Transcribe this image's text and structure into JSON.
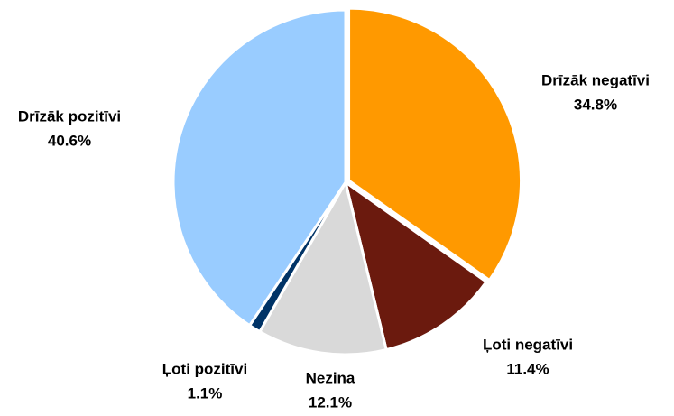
{
  "chart_data": {
    "type": "pie",
    "categories": [
      "Drīzāk negatīvi",
      "Ļoti negatīvi",
      "Nezina",
      "Ļoti pozitīvi",
      "Drīzāk pozitīvi"
    ],
    "values": [
      34.8,
      11.4,
      12.1,
      1.1,
      40.6
    ],
    "value_labels": [
      "34.8%",
      "11.4%",
      "12.1%",
      "1.1%",
      "40.6%"
    ],
    "colors": [
      "#FF9900",
      "#6B1A0E",
      "#D9D9D9",
      "#003366",
      "#99CCFF"
    ]
  }
}
